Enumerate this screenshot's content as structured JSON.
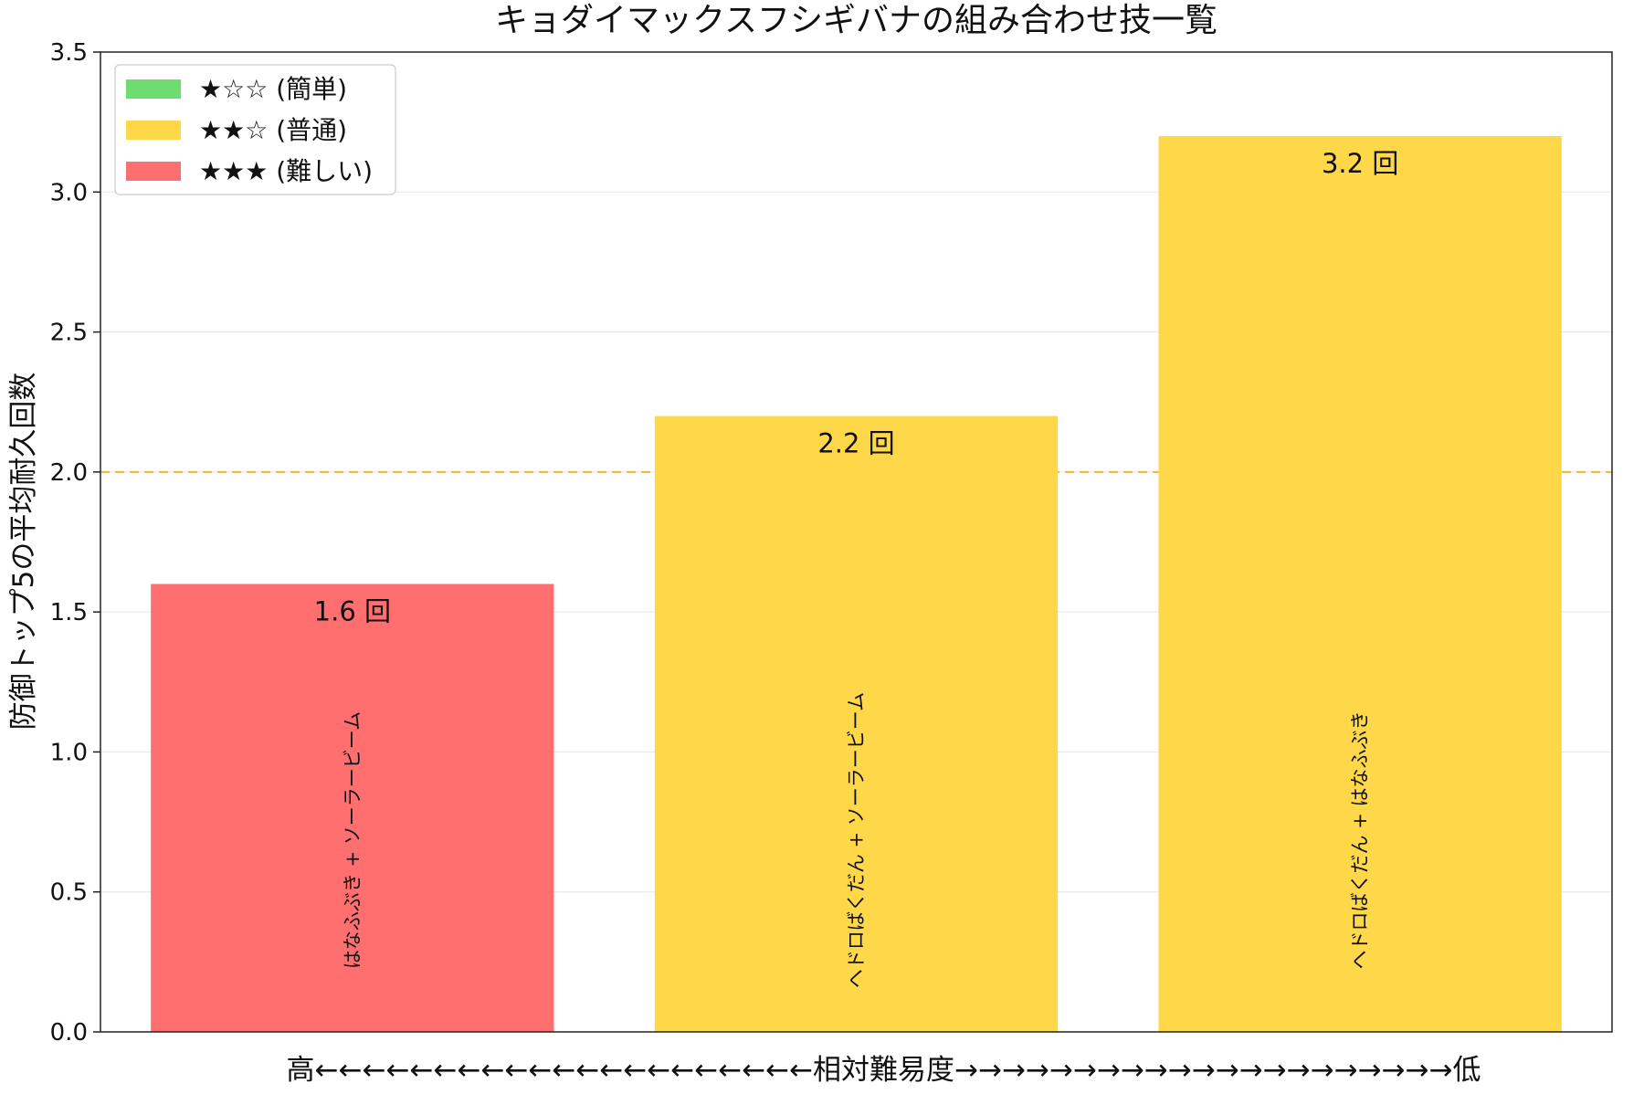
{
  "chart_data": {
    "type": "bar",
    "title": "キョダイマックスフシギバナの組み合わせ技一覧",
    "xlabel": "高←←←←←←←←←←←←←←←←←←←←←相対難易度→→→→→→→→→→→→→→→→→→→→→低",
    "ylabel": "防御トップ5の平均耐久回数",
    "ylim": [
      0,
      3.5
    ],
    "yticks": [
      "0.0",
      "0.5",
      "1.0",
      "1.5",
      "2.0",
      "2.5",
      "3.0",
      "3.5"
    ],
    "grid": "y",
    "categories": [
      "はなふぶき + ソーラービーム",
      "ヘドロばくだん + ソーラービーム",
      "ヘドロばくだん + はなふぶき"
    ],
    "values": [
      1.6,
      2.2,
      3.2
    ],
    "value_labels": [
      "1.6 回",
      "2.2 回",
      "3.2 回"
    ],
    "difficulty": [
      "hard",
      "normal",
      "normal"
    ],
    "reference_line": {
      "y": 2.0,
      "color": "#f5b52e",
      "style": "dashed"
    },
    "legend": {
      "placement": "top-left",
      "entries": [
        {
          "label": "★☆☆ (簡単)",
          "color": "#6fdc6f"
        },
        {
          "label": "★★☆ (普通)",
          "color": "#ffd84a"
        },
        {
          "label": "★★★ (難しい)",
          "color": "#ff6f6f"
        }
      ]
    },
    "colors": {
      "easy": "#6fdc6f",
      "normal": "#ffd84a",
      "hard": "#ff6f6f"
    }
  }
}
